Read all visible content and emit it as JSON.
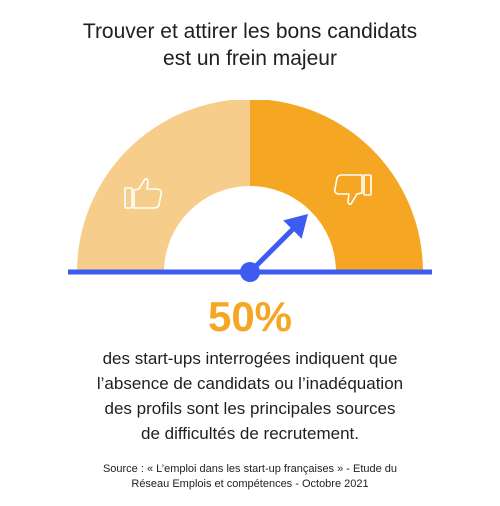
{
  "title": {
    "line1": "Trouver et attirer les bons candidats",
    "line2": "est un frein majeur"
  },
  "chart_data": {
    "type": "gauge",
    "value": 50,
    "value_label": "50%",
    "segments": [
      {
        "icon": "thumbs-up-icon",
        "color": "#f7cd8b",
        "value": 50
      },
      {
        "icon": "thumbs-down-icon",
        "color": "#f5a623",
        "value": 50
      }
    ],
    "baseline_color": "#3d5af1",
    "needle_color": "#3d5af1"
  },
  "description": {
    "line1": "des start-ups interrogées indiquent que",
    "line2": "l’absence de candidats ou l’inadéquation",
    "line3": "des profils sont les principales sources",
    "line4": "de difficultés de recrutement."
  },
  "source": {
    "line1": "Source : « L’emploi dans les start-up françaises » - Etude du",
    "line2": "Réseau Emplois et compétences  -  Octobre 2021"
  }
}
